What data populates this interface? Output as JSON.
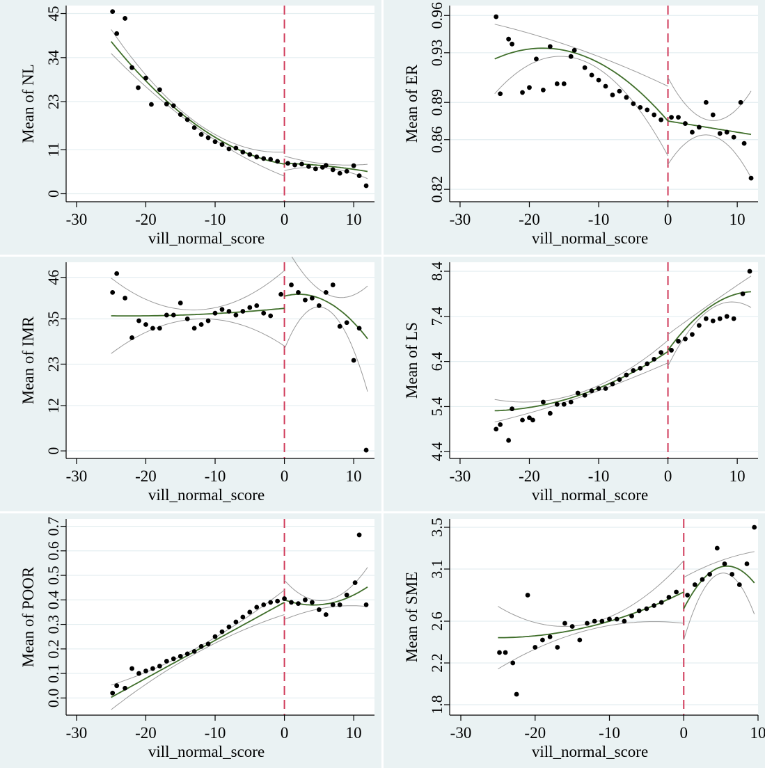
{
  "figure": {
    "background": "#ffffff",
    "panel_background": "#eaf2f3",
    "plot_background": "#ffffff",
    "gridline_color": "#e3edf0",
    "cutoff_color": "#d03a5a",
    "fit_color": "#3f6e2a",
    "ci_color": "#9a9a9a",
    "point_color": "#000000"
  },
  "chart_data": [
    {
      "type": "scatter",
      "ylabel": "Mean of NL",
      "xlabel": "vill_normal_score",
      "xlim": [
        -31.5,
        13
      ],
      "ylim": [
        -2,
        47
      ],
      "xticks": [
        -30,
        -20,
        -10,
        0,
        10
      ],
      "yticks": [
        0,
        11,
        23,
        34,
        45
      ],
      "ytick_labels": [
        "0",
        "11",
        "23",
        "34",
        "45"
      ],
      "ytick_rotation": 0,
      "cutoff_x": 0,
      "grid": true,
      "points": [
        [
          -24.8,
          45.5
        ],
        [
          -24.2,
          40
        ],
        [
          -23.0,
          43.8
        ],
        [
          -22.0,
          31.5
        ],
        [
          -21.1,
          26.5
        ],
        [
          -20.0,
          28.9
        ],
        [
          -19.2,
          22.3
        ],
        [
          -18.0,
          26
        ],
        [
          -17.0,
          22.4
        ],
        [
          -16.0,
          22
        ],
        [
          -15.0,
          19.8
        ],
        [
          -14.0,
          18.5
        ],
        [
          -13.0,
          16.5
        ],
        [
          -12.0,
          14.8
        ],
        [
          -11.0,
          14
        ],
        [
          -10.0,
          13
        ],
        [
          -9.0,
          12.3
        ],
        [
          -8.0,
          11.2
        ],
        [
          -7.0,
          11.4
        ],
        [
          -6.0,
          10.4
        ],
        [
          -5.0,
          9.8
        ],
        [
          -4.0,
          9.2
        ],
        [
          -3.0,
          8.8
        ],
        [
          -2.0,
          8.6
        ],
        [
          -1.0,
          8.1
        ],
        [
          0.5,
          7.6
        ],
        [
          1.5,
          7.2
        ],
        [
          2.5,
          7.4
        ],
        [
          3.5,
          6.8
        ],
        [
          4.5,
          6.2
        ],
        [
          5.5,
          6.6
        ],
        [
          6.0,
          7.1
        ],
        [
          7.0,
          6.0
        ],
        [
          8.0,
          5.1
        ],
        [
          9.0,
          5.6
        ],
        [
          10.0,
          7.0
        ],
        [
          10.8,
          4.5
        ],
        [
          11.8,
          2.0
        ]
      ],
      "fit_left": {
        "x_range": [
          -25,
          0
        ],
        "coef": [
          7.4,
          -0.3,
          0.037
        ]
      },
      "fit_right": {
        "x_range": [
          0,
          12
        ],
        "coef": [
          7.6,
          -0.05,
          -0.01
        ]
      },
      "ci_left": {
        "width_at_edge": 3,
        "width_at_center": 0.6
      },
      "ci_right": {
        "width_at_edge": 1.8,
        "width_at_center": 0.5
      }
    },
    {
      "type": "scatter",
      "ylabel": "Mean of ER",
      "xlabel": "vill_normal_score",
      "xlim": [
        -31.5,
        13
      ],
      "ylim": [
        0.81,
        0.968
      ],
      "xticks": [
        -30,
        -20,
        -10,
        0,
        10
      ],
      "yticks": [
        0.82,
        0.86,
        0.89,
        0.93,
        0.96
      ],
      "ytick_labels": [
        "0.82",
        "0.86",
        "0.89",
        "0.93",
        "0.96"
      ],
      "ytick_rotation": -90,
      "cutoff_x": 0,
      "grid": true,
      "points": [
        [
          -24.8,
          0.959
        ],
        [
          -24.2,
          0.897
        ],
        [
          -23.0,
          0.941
        ],
        [
          -22.5,
          0.937
        ],
        [
          -21.0,
          0.898
        ],
        [
          -20.0,
          0.902
        ],
        [
          -19.0,
          0.925
        ],
        [
          -18.0,
          0.9
        ],
        [
          -17.0,
          0.935
        ],
        [
          -16.0,
          0.905
        ],
        [
          -15.0,
          0.905
        ],
        [
          -14.0,
          0.927
        ],
        [
          -13.5,
          0.932
        ],
        [
          -12.0,
          0.918
        ],
        [
          -11.0,
          0.912
        ],
        [
          -10.0,
          0.908
        ],
        [
          -9.0,
          0.903
        ],
        [
          -8.0,
          0.896
        ],
        [
          -7.0,
          0.899
        ],
        [
          -6.0,
          0.894
        ],
        [
          -5.0,
          0.889
        ],
        [
          -4.0,
          0.886
        ],
        [
          -3.0,
          0.884
        ],
        [
          -2.0,
          0.88
        ],
        [
          -1.0,
          0.876
        ],
        [
          0.5,
          0.878
        ],
        [
          1.5,
          0.878
        ],
        [
          2.5,
          0.873
        ],
        [
          3.5,
          0.866
        ],
        [
          4.5,
          0.87
        ],
        [
          5.5,
          0.89
        ],
        [
          6.5,
          0.88
        ],
        [
          7.5,
          0.865
        ],
        [
          8.5,
          0.866
        ],
        [
          9.5,
          0.862
        ],
        [
          10.5,
          0.89
        ],
        [
          11.0,
          0.857
        ],
        [
          12.0,
          0.829
        ]
      ],
      "fit_left": {
        "x_range": [
          -25,
          0
        ],
        "coef": [
          0.875,
          -0.0065,
          -0.00018
        ]
      },
      "fit_right": {
        "x_range": [
          0,
          12
        ],
        "coef": [
          0.875,
          -0.0009,
          0
        ]
      },
      "ci_left": {
        "width_at_edge": 0.028,
        "width_at_center": 0.004
      },
      "ci_right": {
        "width_at_edge": 0.035,
        "width_at_center": 0.006
      }
    },
    {
      "type": "scatter",
      "ylabel": "Mean of IMR",
      "xlabel": "vill_normal_score",
      "xlim": [
        -31.5,
        13
      ],
      "ylim": [
        -2,
        50
      ],
      "xticks": [
        -30,
        -20,
        -10,
        0,
        10
      ],
      "yticks": [
        0,
        12,
        23,
        35,
        46
      ],
      "ytick_labels": [
        "0",
        "12",
        "23",
        "35",
        "46"
      ],
      "ytick_rotation": 0,
      "cutoff_x": 0,
      "grid": true,
      "points": [
        [
          -24.8,
          42
        ],
        [
          -24.2,
          47
        ],
        [
          -23.0,
          40.5
        ],
        [
          -22.0,
          30
        ],
        [
          -21.0,
          34.5
        ],
        [
          -20.0,
          33.5
        ],
        [
          -19.0,
          32.5
        ],
        [
          -18.0,
          32.5
        ],
        [
          -17.0,
          36
        ],
        [
          -16.0,
          36
        ],
        [
          -15.0,
          39.2
        ],
        [
          -14.0,
          35
        ],
        [
          -13.0,
          32.5
        ],
        [
          -12.0,
          33.5
        ],
        [
          -11.0,
          34.5
        ],
        [
          -10.0,
          36.5
        ],
        [
          -9.0,
          37.5
        ],
        [
          -8.0,
          37
        ],
        [
          -7.0,
          36
        ],
        [
          -6.0,
          37
        ],
        [
          -5.0,
          38
        ],
        [
          -4.0,
          38.5
        ],
        [
          -3.0,
          36.5
        ],
        [
          -2.0,
          35.8
        ],
        [
          -0.5,
          41.5
        ],
        [
          1.0,
          44
        ],
        [
          2.0,
          42
        ],
        [
          3.0,
          40
        ],
        [
          4.0,
          40.5
        ],
        [
          5.0,
          38.5
        ],
        [
          6.0,
          42
        ],
        [
          7.0,
          44
        ],
        [
          8.0,
          33
        ],
        [
          9.0,
          34
        ],
        [
          10.0,
          24
        ],
        [
          10.8,
          32.5
        ],
        [
          11.8,
          0.2
        ]
      ],
      "fit_left": {
        "x_range": [
          -25,
          0
        ],
        "coef": [
          37.8,
          0.18,
          0.004
        ]
      },
      "fit_right": {
        "x_range": [
          0,
          12
        ],
        "coef": [
          41,
          0.5,
          -0.12
        ]
      },
      "ci_left": {
        "width_at_edge": 10,
        "width_at_center": 1.2
      },
      "ci_right": {
        "width_at_edge": 14,
        "width_at_center": 2
      }
    },
    {
      "type": "scatter",
      "ylabel": "Mean of LS",
      "xlabel": "vill_normal_score",
      "xlim": [
        -31.5,
        13
      ],
      "ylim": [
        4.25,
        8.6
      ],
      "xticks": [
        -30,
        -20,
        -10,
        0,
        10
      ],
      "yticks": [
        4.4,
        5.4,
        6.4,
        7.4,
        8.4
      ],
      "ytick_labels": [
        "4.4",
        "5.4",
        "6.4",
        "7.4",
        "8.4"
      ],
      "ytick_rotation": -90,
      "cutoff_x": 0,
      "grid": true,
      "points": [
        [
          -24.8,
          4.9
        ],
        [
          -24.2,
          5.0
        ],
        [
          -23.0,
          4.65
        ],
        [
          -22.5,
          5.35
        ],
        [
          -21.0,
          5.1
        ],
        [
          -20.0,
          5.15
        ],
        [
          -19.5,
          5.1
        ],
        [
          -18.0,
          5.5
        ],
        [
          -17.0,
          5.25
        ],
        [
          -16.0,
          5.45
        ],
        [
          -15.0,
          5.45
        ],
        [
          -14.0,
          5.5
        ],
        [
          -13.0,
          5.7
        ],
        [
          -12.0,
          5.65
        ],
        [
          -11.0,
          5.75
        ],
        [
          -10.0,
          5.8
        ],
        [
          -9.0,
          5.8
        ],
        [
          -8.0,
          5.9
        ],
        [
          -7.0,
          6.0
        ],
        [
          -6.0,
          6.1
        ],
        [
          -5.0,
          6.2
        ],
        [
          -4.0,
          6.25
        ],
        [
          -3.0,
          6.35
        ],
        [
          -2.0,
          6.45
        ],
        [
          -1.0,
          6.6
        ],
        [
          0.5,
          6.65
        ],
        [
          1.5,
          6.85
        ],
        [
          2.5,
          6.9
        ],
        [
          3.5,
          7.0
        ],
        [
          4.5,
          7.2
        ],
        [
          5.5,
          7.35
        ],
        [
          6.5,
          7.3
        ],
        [
          7.5,
          7.35
        ],
        [
          8.5,
          7.4
        ],
        [
          9.5,
          7.35
        ],
        [
          10.8,
          7.9
        ],
        [
          11.8,
          8.4
        ]
      ],
      "fit_left": {
        "x_range": [
          -25,
          0
        ],
        "coef": [
          6.62,
          0.1,
          0.0019
        ]
      },
      "fit_right": {
        "x_range": [
          0,
          12
        ],
        "coef": [
          6.65,
          0.21,
          -0.0085
        ]
      },
      "ci_left": {
        "width_at_edge": 0.25,
        "width_at_center": 0.05
      },
      "ci_right": {
        "width_at_edge": 0.35,
        "width_at_center": 0.06
      }
    },
    {
      "type": "scatter",
      "ylabel": "Mean of POOR",
      "xlabel": "vill_normal_score",
      "xlim": [
        -31.5,
        13
      ],
      "ylim": [
        -0.07,
        0.73
      ],
      "xticks": [
        -30,
        -20,
        -10,
        0,
        10
      ],
      "yticks": [
        0.0,
        0.1,
        0.2,
        0.3,
        0.4,
        0.5,
        0.6,
        0.7
      ],
      "ytick_labels": [
        "0.0",
        "0.1",
        "0.2",
        "0.3",
        "0.4",
        "0.5",
        "0.6",
        "0.7"
      ],
      "ytick_rotation": -90,
      "cutoff_x": 0,
      "grid": true,
      "points": [
        [
          -24.8,
          0.02
        ],
        [
          -24.2,
          0.05
        ],
        [
          -23.0,
          0.04
        ],
        [
          -22.0,
          0.12
        ],
        [
          -21.0,
          0.1
        ],
        [
          -20.0,
          0.11
        ],
        [
          -19.0,
          0.12
        ],
        [
          -18.0,
          0.13
        ],
        [
          -17.0,
          0.15
        ],
        [
          -16.0,
          0.16
        ],
        [
          -15.0,
          0.17
        ],
        [
          -14.0,
          0.18
        ],
        [
          -13.0,
          0.19
        ],
        [
          -12.0,
          0.21
        ],
        [
          -11.0,
          0.22
        ],
        [
          -10.0,
          0.25
        ],
        [
          -9.0,
          0.27
        ],
        [
          -8.0,
          0.29
        ],
        [
          -7.0,
          0.31
        ],
        [
          -6.0,
          0.33
        ],
        [
          -5.0,
          0.35
        ],
        [
          -4.0,
          0.37
        ],
        [
          -3.0,
          0.38
        ],
        [
          -2.0,
          0.39
        ],
        [
          -1.0,
          0.395
        ],
        [
          0.0,
          0.405
        ],
        [
          1.0,
          0.39
        ],
        [
          2.0,
          0.385
        ],
        [
          3.0,
          0.4
        ],
        [
          4.0,
          0.39
        ],
        [
          5.0,
          0.36
        ],
        [
          6.0,
          0.34
        ],
        [
          7.0,
          0.38
        ],
        [
          8.0,
          0.38
        ],
        [
          9.0,
          0.42
        ],
        [
          10.2,
          0.47
        ],
        [
          10.8,
          0.665
        ],
        [
          11.8,
          0.38
        ]
      ],
      "fit_left": {
        "x_range": [
          -25,
          0
        ],
        "coef": [
          0.39,
          0.0155,
          0
        ]
      },
      "fit_right": {
        "x_range": [
          0,
          12
        ],
        "coef": [
          0.4,
          -0.01,
          0.0012
        ]
      },
      "ci_left": {
        "width_at_edge": 0.05,
        "width_at_center": 0.01
      },
      "ci_right": {
        "width_at_edge": 0.08,
        "width_at_center": 0.015
      }
    },
    {
      "type": "scatter",
      "ylabel": "Mean of SME",
      "xlabel": "vill_normal_score",
      "xlim": [
        -31.5,
        10
      ],
      "ylim": [
        1.7,
        3.58
      ],
      "xticks": [
        -30,
        -20,
        -10,
        0,
        10
      ],
      "yticks": [
        1.8,
        2.2,
        2.6,
        3.1,
        3.5
      ],
      "ytick_labels": [
        "1.8",
        "2.2",
        "2.6",
        "3.1",
        "3.5"
      ],
      "ytick_rotation": -90,
      "cutoff_x": 0,
      "grid": true,
      "points": [
        [
          -24.8,
          2.3
        ],
        [
          -24.0,
          2.3
        ],
        [
          -23.0,
          2.2
        ],
        [
          -22.5,
          1.9
        ],
        [
          -21.0,
          2.85
        ],
        [
          -20.0,
          2.35
        ],
        [
          -19.0,
          2.42
        ],
        [
          -18.0,
          2.45
        ],
        [
          -17.0,
          2.35
        ],
        [
          -16.0,
          2.58
        ],
        [
          -15.0,
          2.55
        ],
        [
          -14.0,
          2.42
        ],
        [
          -13.0,
          2.58
        ],
        [
          -12.0,
          2.6
        ],
        [
          -11.0,
          2.6
        ],
        [
          -10.0,
          2.62
        ],
        [
          -9.0,
          2.62
        ],
        [
          -8.0,
          2.6
        ],
        [
          -7.0,
          2.65
        ],
        [
          -6.0,
          2.7
        ],
        [
          -5.0,
          2.72
        ],
        [
          -4.0,
          2.75
        ],
        [
          -3.0,
          2.78
        ],
        [
          -2.0,
          2.83
        ],
        [
          -1.0,
          2.88
        ],
        [
          0.5,
          2.85
        ],
        [
          1.5,
          2.95
        ],
        [
          2.5,
          3.0
        ],
        [
          3.5,
          3.05
        ],
        [
          4.5,
          3.3
        ],
        [
          5.5,
          3.15
        ],
        [
          6.5,
          3.05
        ],
        [
          7.5,
          2.95
        ],
        [
          8.5,
          3.15
        ],
        [
          9.5,
          3.5
        ]
      ],
      "fit_left": {
        "x_range": [
          -25,
          0
        ],
        "coef": [
          2.88,
          0.035,
          0.0007
        ]
      },
      "fit_right": {
        "x_range": [
          0,
          9.5
        ],
        "coef": [
          2.72,
          0.14,
          -0.012
        ]
      },
      "ci_left": {
        "width_at_edge": 0.3,
        "width_at_center": 0.03
      },
      "ci_right": {
        "width_at_edge": 0.3,
        "width_at_center": 0.06
      }
    }
  ]
}
